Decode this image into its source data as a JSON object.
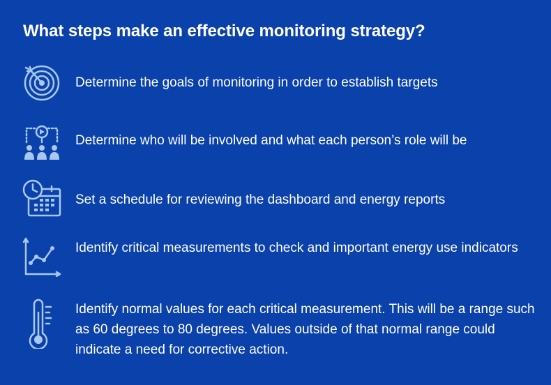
{
  "title": "What steps make an effective monitoring strategy?",
  "steps": [
    {
      "icon": "target-icon",
      "text": "Determine the goals of monitoring in order to establish targets"
    },
    {
      "icon": "team-gear-icon",
      "text": "Determine who will be involved and what each person’s role will be"
    },
    {
      "icon": "calendar-clock-icon",
      "text": "Set a schedule for reviewing the dashboard and energy reports"
    },
    {
      "icon": "line-chart-icon",
      "text": "Identify critical measurements to check and important energy use indicators"
    },
    {
      "icon": "thermometer-icon",
      "text": "Identify normal values for each critical measurement. This will be a range such as 60 degrees to 80 degrees. Values outside of that normal range could indicate a need for corrective action."
    }
  ],
  "colors": {
    "background": "#0b41ab",
    "text": "#ffffff",
    "icon": "#a9c8ee"
  }
}
